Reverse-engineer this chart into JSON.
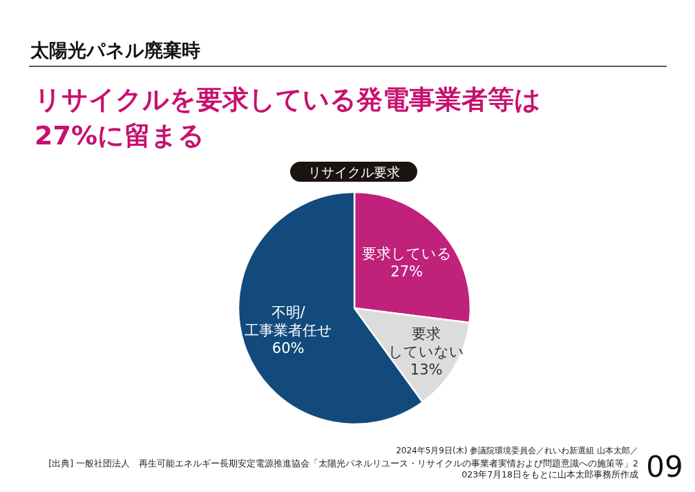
{
  "chart_data": {
    "type": "pie",
    "title": "リサイクル要求",
    "subtitle": "太陽光パネル廃棄時",
    "annotations": [
      "リサイクルを要求している発電事業者等は\n27%に留まる",
      "2024年5月9日(木) 参議院環境委員会／れいわ新選組 山本太郎／",
      "[出典] 一般社団法人　再生可能エネルギー長期安定電源推進協会「太陽光パネルリユース・リサイクルの事業者実情および問題意識への施策等」2023年7月18日をもとに山本太郎事務所作成",
      "09"
    ],
    "categories": [
      "要求している",
      "要求していない",
      "不明/\n工事業者任せ"
    ],
    "values": [
      27,
      13,
      60
    ],
    "value_labels": [
      "27%",
      "13%",
      "60%"
    ],
    "colors": [
      "#c0217a",
      "#dcdcdc",
      "#124a7c"
    ]
  }
}
